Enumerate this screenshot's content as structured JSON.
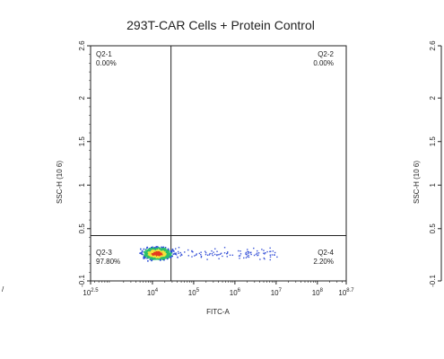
{
  "chart_data": {
    "type": "scatter",
    "title": "293T-CAR Cells + Protein Control",
    "xlabel": "FITC-A",
    "ylabel": "SSC-H (10 6)",
    "x_scale": "log",
    "xlim_log10": [
      2.5,
      8.7
    ],
    "x_ticks": [
      {
        "base": "10",
        "exp": "2.5",
        "log": 2.5
      },
      {
        "base": "10",
        "exp": "4",
        "log": 4
      },
      {
        "base": "10",
        "exp": "5",
        "log": 5
      },
      {
        "base": "10",
        "exp": "6",
        "log": 6
      },
      {
        "base": "10",
        "exp": "7",
        "log": 7
      },
      {
        "base": "10",
        "exp": "8",
        "log": 8
      },
      {
        "base": "10",
        "exp": "8.7",
        "log": 8.7
      }
    ],
    "ylim": [
      -0.1,
      2.6
    ],
    "y_ticks": [
      {
        "label": "-0.1",
        "value": -0.1
      },
      {
        "label": "0.5",
        "value": 0.5
      },
      {
        "label": "1",
        "value": 1.0
      },
      {
        "label": "1.5",
        "value": 1.5
      },
      {
        "label": "2",
        "value": 2.0
      },
      {
        "label": "2.6",
        "value": 2.6
      }
    ],
    "gate_x_log10": 4.45,
    "gate_y": 0.42,
    "quadrants": [
      {
        "name": "Q2-1",
        "percent": "0.00%",
        "position": "top-left"
      },
      {
        "name": "Q2-2",
        "percent": "0.00%",
        "position": "top-right"
      },
      {
        "name": "Q2-3",
        "percent": "97.80%",
        "position": "bottom-left"
      },
      {
        "name": "Q2-4",
        "percent": "2.20%",
        "position": "bottom-right"
      }
    ],
    "population": {
      "center_log10_x": 4.1,
      "center_y": 0.22,
      "description": "dense cluster in Q2-3"
    },
    "colors": {
      "core": "#e53b1f",
      "mid": "#f3e23b",
      "outer": "#2bbf6a",
      "edge": "#2b4fd8",
      "sparse": "#3b55d8"
    }
  }
}
